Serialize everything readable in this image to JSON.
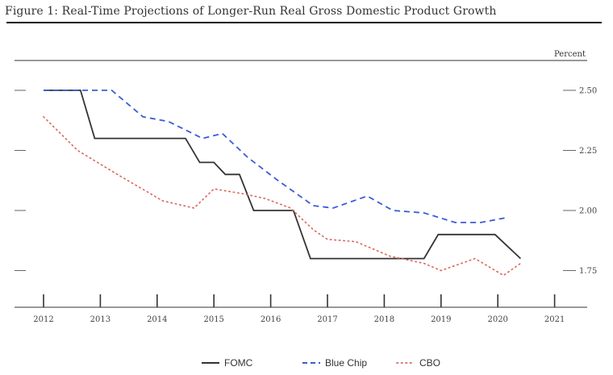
{
  "figure_title": "Figure 1: Real-Time Projections of Longer-Run Real Gross Domestic Product Growth",
  "chart_data": {
    "type": "line",
    "title": "Figure 1: Real-Time Projections of Longer-Run Real Gross Domestic Product Growth",
    "xlabel": "",
    "ylabel": "Percent",
    "xlim": [
      2011.9,
      2021.2
    ],
    "ylim": [
      1.6,
      2.7
    ],
    "x_ticks": [
      "2012",
      "2013",
      "2014",
      "2015",
      "2016",
      "2017",
      "2018",
      "2019",
      "2020",
      "2021"
    ],
    "y_ticks": [
      "2.50",
      "2.25",
      "2.00",
      "1.75"
    ],
    "grid": false,
    "legend_position": "bottom-center",
    "series": [
      {
        "name": "FOMC",
        "style": "solid",
        "color": "#333333",
        "points": [
          [
            2012.0,
            2.5
          ],
          [
            2012.65,
            2.5
          ],
          [
            2012.9,
            2.3
          ],
          [
            2014.5,
            2.3
          ],
          [
            2014.75,
            2.2
          ],
          [
            2015.0,
            2.2
          ],
          [
            2015.2,
            2.15
          ],
          [
            2015.45,
            2.15
          ],
          [
            2015.7,
            2.0
          ],
          [
            2016.4,
            2.0
          ],
          [
            2016.7,
            1.8
          ],
          [
            2018.7,
            1.8
          ],
          [
            2018.95,
            1.9
          ],
          [
            2019.95,
            1.9
          ],
          [
            2020.4,
            1.8
          ]
        ]
      },
      {
        "name": "Blue Chip",
        "style": "dashed",
        "color": "#3b5bd9",
        "points": [
          [
            2012.0,
            2.5
          ],
          [
            2013.2,
            2.5
          ],
          [
            2013.75,
            2.39
          ],
          [
            2014.2,
            2.37
          ],
          [
            2014.8,
            2.3
          ],
          [
            2015.15,
            2.32
          ],
          [
            2015.6,
            2.22
          ],
          [
            2016.1,
            2.13
          ],
          [
            2016.75,
            2.02
          ],
          [
            2017.1,
            2.01
          ],
          [
            2017.7,
            2.06
          ],
          [
            2018.15,
            2.0
          ],
          [
            2018.7,
            1.99
          ],
          [
            2019.25,
            1.95
          ],
          [
            2019.7,
            1.95
          ],
          [
            2020.15,
            1.97
          ]
        ]
      },
      {
        "name": "CBO",
        "style": "dotted",
        "color": "#d9665b",
        "points": [
          [
            2012.0,
            2.39
          ],
          [
            2012.6,
            2.25
          ],
          [
            2013.3,
            2.15
          ],
          [
            2014.1,
            2.04
          ],
          [
            2014.65,
            2.01
          ],
          [
            2015.0,
            2.09
          ],
          [
            2015.5,
            2.07
          ],
          [
            2015.9,
            2.05
          ],
          [
            2016.35,
            2.01
          ],
          [
            2016.75,
            1.92
          ],
          [
            2017.0,
            1.88
          ],
          [
            2017.5,
            1.87
          ],
          [
            2018.1,
            1.81
          ],
          [
            2018.7,
            1.78
          ],
          [
            2019.0,
            1.75
          ],
          [
            2019.6,
            1.8
          ],
          [
            2020.1,
            1.73
          ],
          [
            2020.4,
            1.78
          ]
        ]
      }
    ]
  }
}
